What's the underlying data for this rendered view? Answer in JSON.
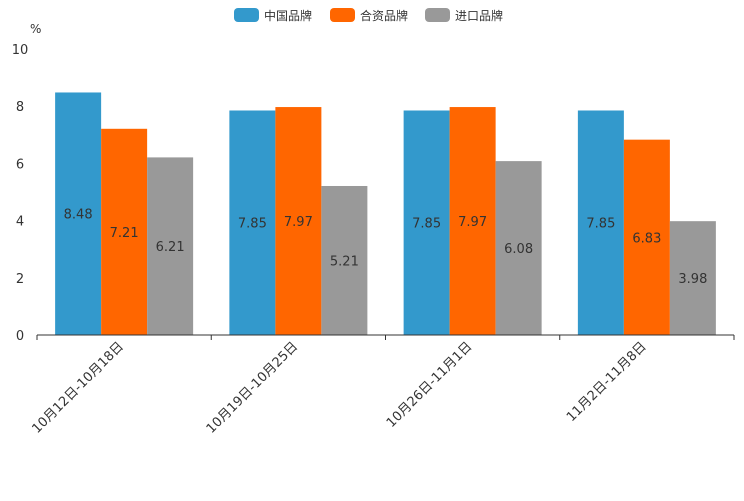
{
  "chart_data": {
    "type": "bar",
    "title": "",
    "xlabel": "",
    "ylabel": "",
    "y_unit": "%",
    "ylim": [
      0,
      10
    ],
    "y_ticks": [
      0,
      2,
      4,
      6,
      8,
      10
    ],
    "grid": false,
    "legend_position": "top-center",
    "categories": [
      "10月12日-10月18日",
      "10月19日-10月25日",
      "10月26日-11月1日",
      "11月2日-11月8日"
    ],
    "series": [
      {
        "name": "中国品牌",
        "color": "#3399cc",
        "values": [
          8.48,
          7.85,
          7.85,
          7.85
        ]
      },
      {
        "name": "合资品牌",
        "color": "#ff6600",
        "values": [
          7.21,
          7.97,
          7.97,
          6.83
        ]
      },
      {
        "name": "进口品牌",
        "color": "#999999",
        "values": [
          6.21,
          5.21,
          6.08,
          3.98
        ]
      }
    ]
  }
}
